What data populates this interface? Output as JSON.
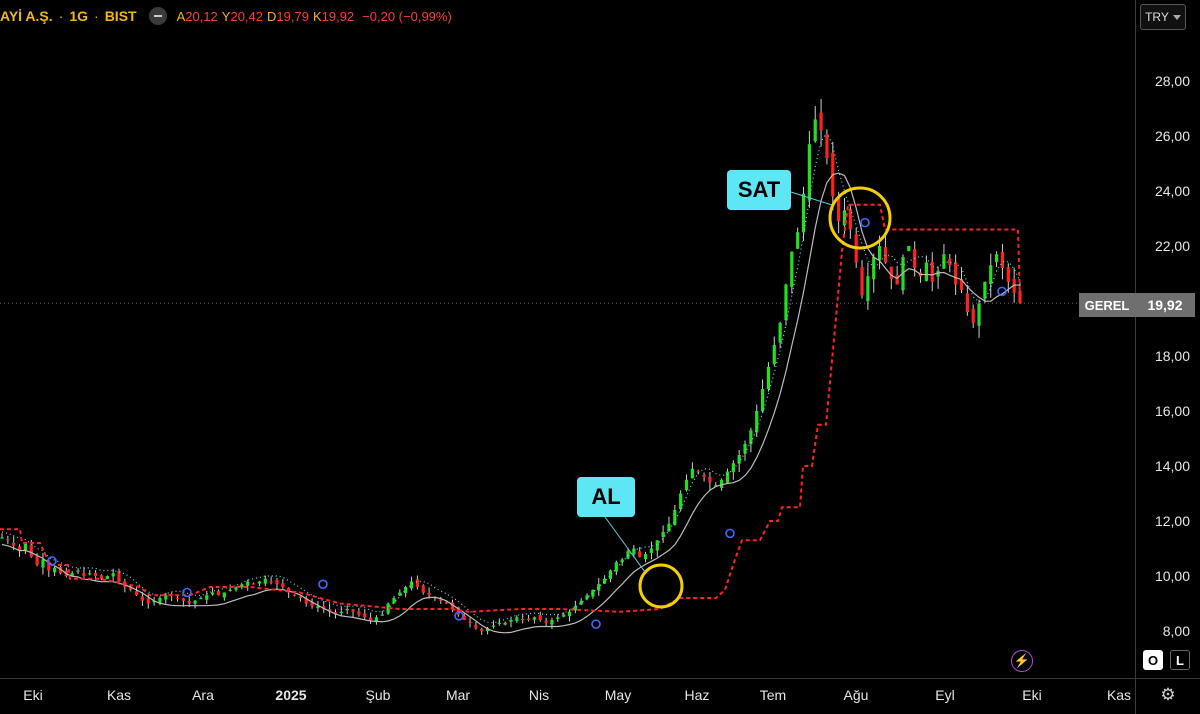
{
  "header": {
    "symbol": "AYİ A.Ş.",
    "interval": "1G",
    "exchange": "BIST",
    "ohlc": [
      {
        "key": "A",
        "value": "20,12"
      },
      {
        "key": "Y",
        "value": "20,42"
      },
      {
        "key": "D",
        "value": "19,79"
      },
      {
        "key": "K",
        "value": "19,92"
      }
    ],
    "change": "−0,20 (−0,99%)",
    "currency": "TRY",
    "hide_icon": "minus-circle-icon"
  },
  "price_label": {
    "tag": "GEREL",
    "value": "19,92",
    "price": 19.92
  },
  "annotations": {
    "buy_label": "AL",
    "sell_label": "SAT"
  },
  "controls": {
    "log_button": "O",
    "percent_button": "L",
    "bolt_icon": "lightning-icon",
    "settings_icon": "gear-icon"
  },
  "colors": {
    "up": "#22e01e",
    "down": "#ff2222",
    "accent": "#f0b90b",
    "stop_line": "#ff2222",
    "mid_line": "#5ee6f5",
    "ma_line": "#bbbbbb",
    "circle": "#f5d000",
    "annotation_box": "#5ee6f5"
  },
  "chart_data": {
    "type": "candlestick",
    "title": "",
    "ylim": [
      7.2,
      29.5
    ],
    "yticks": [
      "28,00",
      "26,00",
      "24,00",
      "22,00",
      "20,00",
      "18,00",
      "16,00",
      "14,00",
      "12,00",
      "10,00",
      "8,00"
    ],
    "ytick_values": [
      28,
      26,
      24,
      22,
      20,
      18,
      16,
      14,
      12,
      10,
      8
    ],
    "xticks": [
      "Eki",
      "Kas",
      "Ara",
      "2025",
      "Şub",
      "Mar",
      "Nis",
      "May",
      "Haz",
      "Tem",
      "Ağu",
      "Eyl",
      "Eki",
      "Kas"
    ],
    "xtick_bold": [
      "2025"
    ],
    "close_series": [
      11.4,
      11.3,
      11.1,
      10.9,
      11.2,
      10.7,
      10.4,
      10.6,
      10.2,
      10.3,
      10.1,
      10.0,
      10.1,
      10.2,
      10.0,
      10.1,
      10.0,
      9.9,
      10.0,
      10.1,
      9.8,
      9.6,
      9.5,
      9.3,
      9.1,
      9.0,
      9.1,
      9.2,
      9.3,
      9.3,
      9.2,
      9.1,
      9.0,
      9.1,
      9.2,
      9.3,
      9.4,
      9.3,
      9.4,
      9.5,
      9.6,
      9.7,
      9.8,
      9.7,
      9.8,
      9.9,
      9.8,
      9.7,
      9.6,
      9.4,
      9.3,
      9.2,
      9.0,
      8.9,
      8.9,
      8.8,
      8.7,
      8.6,
      8.7,
      8.8,
      8.7,
      8.6,
      8.5,
      8.4,
      8.5,
      8.6,
      9.0,
      9.2,
      9.4,
      9.6,
      9.8,
      9.6,
      9.4,
      9.3,
      9.2,
      9.1,
      9.0,
      8.8,
      8.6,
      8.4,
      8.3,
      8.1,
      8.0,
      8.1,
      8.2,
      8.3,
      8.3,
      8.4,
      8.5,
      8.4,
      8.4,
      8.5,
      8.4,
      8.3,
      8.4,
      8.5,
      8.6,
      8.7,
      8.9,
      9.1,
      9.3,
      9.5,
      9.7,
      9.9,
      10.2,
      10.5,
      10.6,
      10.9,
      11.0,
      10.7,
      10.8,
      11.0,
      11.3,
      11.6,
      11.9,
      12.4,
      13.0,
      13.5,
      13.9,
      13.8,
      13.6,
      13.4,
      13.3,
      13.5,
      13.8,
      14.1,
      14.4,
      14.8,
      15.3,
      16.0,
      16.8,
      17.6,
      18.4,
      19.2,
      20.6,
      21.8,
      22.5,
      23.9,
      25.7,
      26.6,
      26.2,
      25.2,
      23.8,
      22.9,
      23.3,
      22.6,
      21.4,
      20.2,
      20.9,
      21.6,
      22.0,
      21.4,
      20.8,
      20.6,
      21.6,
      22.0,
      21.2,
      20.9,
      21.4,
      20.7,
      21.1,
      21.7,
      21.3,
      20.6,
      20.4,
      19.6,
      19.2,
      19.9,
      20.7,
      21.3,
      21.7,
      21.2,
      20.7,
      20.3,
      19.92
    ],
    "stop_line": [
      [
        0,
        11.7
      ],
      [
        20,
        11.7
      ],
      [
        22,
        11.2
      ],
      [
        40,
        11.2
      ],
      [
        50,
        10.4
      ],
      [
        68,
        10.4
      ],
      [
        70,
        9.9
      ],
      [
        100,
        9.9
      ],
      [
        140,
        9.6
      ],
      [
        150,
        9.3
      ],
      [
        190,
        9.3
      ],
      [
        210,
        9.6
      ],
      [
        250,
        9.6
      ],
      [
        300,
        9.4
      ],
      [
        340,
        9.0
      ],
      [
        400,
        8.8
      ],
      [
        450,
        8.8
      ],
      [
        470,
        8.7
      ],
      [
        520,
        8.8
      ],
      [
        560,
        8.8
      ],
      [
        620,
        8.7
      ],
      [
        660,
        8.8
      ],
      [
        680,
        9.2
      ],
      [
        716,
        9.2
      ],
      [
        725,
        9.5
      ],
      [
        735,
        10.6
      ],
      [
        742,
        11.3
      ],
      [
        760,
        11.3
      ],
      [
        770,
        12.0
      ],
      [
        778,
        12.0
      ],
      [
        782,
        12.5
      ],
      [
        800,
        12.5
      ],
      [
        803,
        14.0
      ],
      [
        812,
        14.0
      ],
      [
        818,
        15.5
      ],
      [
        826,
        15.5
      ],
      [
        835,
        19.0
      ],
      [
        842,
        21.8
      ],
      [
        848,
        23.5
      ],
      [
        880,
        23.5
      ],
      [
        885,
        22.6
      ],
      [
        1018,
        22.6
      ],
      [
        1020,
        20.0
      ]
    ]
  }
}
